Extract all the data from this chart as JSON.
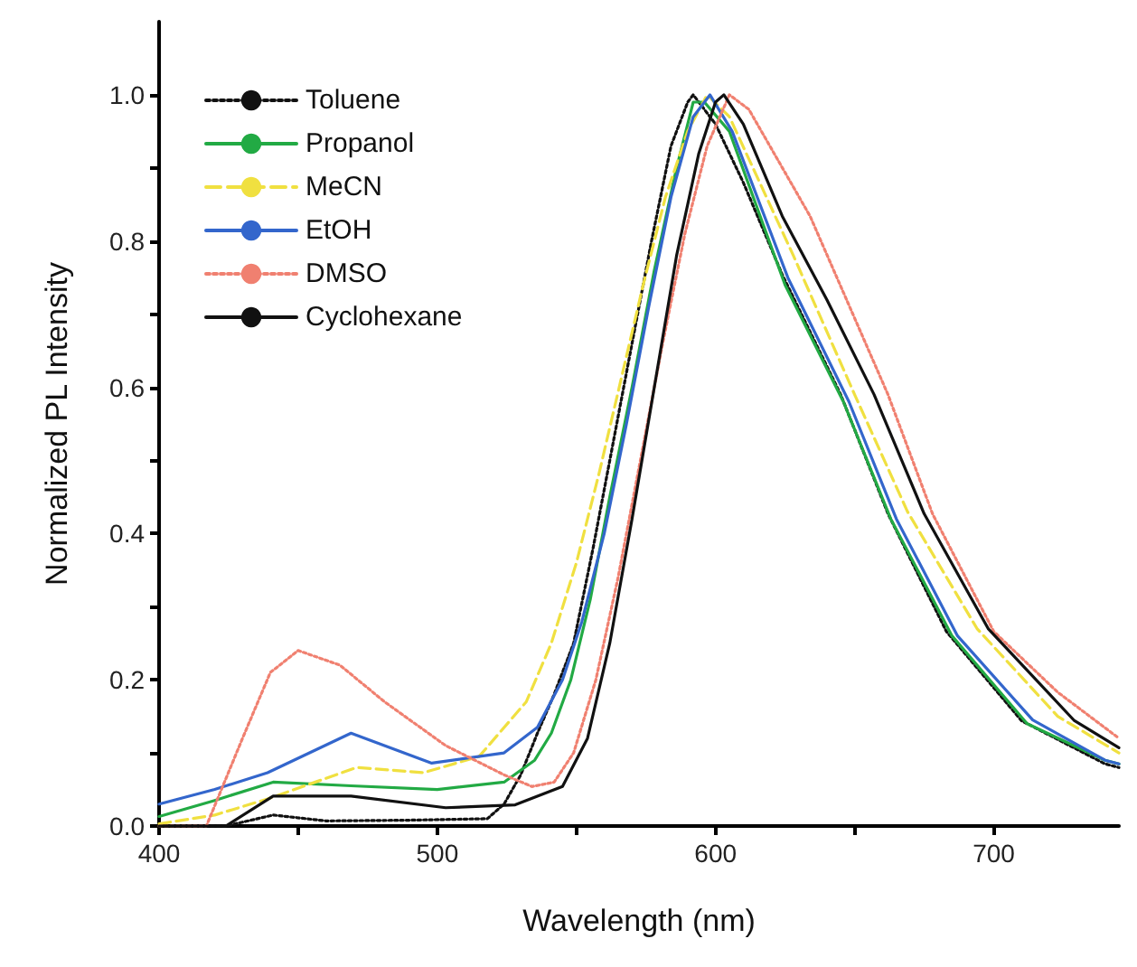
{
  "chart_data": {
    "type": "line",
    "xlabel": "Wavelength (nm)",
    "ylabel": "Normalized PL Intensity",
    "xlim": [
      400,
      745
    ],
    "ylim": [
      0,
      1.1
    ],
    "xticks": [
      400,
      {
        "value": 450,
        "label": null
      },
      500,
      {
        "value": 550,
        "label": null
      },
      600,
      {
        "value": 650,
        "label": null
      },
      700
    ],
    "yticks": [
      {
        "value": 0,
        "label": "0.0"
      },
      {
        "value": 0.1,
        "label": null
      },
      {
        "value": 0.2,
        "label": "0.2"
      },
      {
        "value": 0.3,
        "label": null
      },
      {
        "value": 0.4,
        "label": "0.4"
      },
      {
        "value": 0.5,
        "label": null
      },
      {
        "value": 0.6,
        "label": "0.6"
      },
      {
        "value": 0.7,
        "label": null
      },
      {
        "value": 0.8,
        "label": "0.8"
      },
      {
        "value": 0.9,
        "label": null
      },
      {
        "value": 1,
        "label": "1.0"
      }
    ],
    "grid": false,
    "legend": "top left",
    "marker": "none",
    "series": [
      {
        "name": "Toluene",
        "color": "#111111",
        "line_style": "dotted",
        "x": [
          400,
          424,
          441,
          460,
          490,
          518,
          524,
          530,
          536,
          542,
          549,
          556,
          563,
          570,
          577,
          584,
          590,
          592,
          600,
          610,
          624,
          645,
          662,
          683,
          710,
          740,
          745
        ],
        "values": [
          0,
          0,
          0.015,
          0.007,
          0.008,
          0.01,
          0.03,
          0.07,
          0.127,
          0.18,
          0.25,
          0.38,
          0.52,
          0.66,
          0.8,
          0.93,
          0.99,
          1.0,
          0.96,
          0.88,
          0.754,
          0.59,
          0.427,
          0.266,
          0.144,
          0.085,
          0.08
        ]
      },
      {
        "name": "Propanol",
        "color": "#22aa44",
        "line_style": "solid",
        "x": [
          400,
          420,
          441,
          469,
          500,
          524,
          535,
          541,
          548,
          555,
          562,
          570,
          578,
          586,
          592,
          596,
          605,
          625,
          646,
          663,
          685,
          712,
          740,
          745
        ],
        "values": [
          0.013,
          0.035,
          0.06,
          0.055,
          0.05,
          0.06,
          0.09,
          0.127,
          0.2,
          0.31,
          0.45,
          0.6,
          0.76,
          0.9,
          0.99,
          0.99,
          0.95,
          0.74,
          0.58,
          0.42,
          0.26,
          0.14,
          0.09,
          0.085
        ]
      },
      {
        "name": "MeCN",
        "color": "#f0e040",
        "line_style": "dashed",
        "x": [
          400,
          420,
          439,
          471,
          495,
          515,
          532,
          541,
          550,
          558,
          566,
          574,
          582,
          590,
          597,
          605,
          628,
          650,
          669,
          694,
          723,
          745
        ],
        "values": [
          0.003,
          0.015,
          0.037,
          0.08,
          0.073,
          0.095,
          0.17,
          0.25,
          0.36,
          0.48,
          0.61,
          0.74,
          0.86,
          0.95,
          1.0,
          0.97,
          0.78,
          0.59,
          0.43,
          0.27,
          0.15,
          0.1
        ]
      },
      {
        "name": "EtOH",
        "color": "#3366cc",
        "line_style": "solid",
        "x": [
          400,
          420,
          439,
          469,
          498,
          524,
          536,
          545,
          552,
          560,
          568,
          576,
          584,
          592,
          598,
          606,
          626,
          648,
          665,
          687,
          714,
          740,
          745
        ],
        "values": [
          0.03,
          0.05,
          0.073,
          0.127,
          0.086,
          0.1,
          0.135,
          0.2,
          0.28,
          0.4,
          0.55,
          0.71,
          0.86,
          0.97,
          1.0,
          0.95,
          0.75,
          0.58,
          0.42,
          0.26,
          0.145,
          0.09,
          0.085
        ]
      },
      {
        "name": "DMSO",
        "color": "#f08070",
        "line_style": "dotted",
        "x": [
          400,
          417,
          430,
          440,
          450,
          465,
          481,
          503,
          524,
          534,
          542,
          549,
          557,
          565,
          573,
          581,
          589,
          597,
          605,
          612,
          634,
          662,
          678,
          700,
          723,
          745
        ],
        "values": [
          0,
          0,
          0.12,
          0.21,
          0.24,
          0.22,
          0.17,
          0.11,
          0.07,
          0.054,
          0.06,
          0.1,
          0.2,
          0.34,
          0.5,
          0.66,
          0.81,
          0.93,
          1.0,
          0.98,
          0.834,
          0.59,
          0.427,
          0.266,
          0.183,
          0.12
        ]
      },
      {
        "name": "Cyclohexane",
        "color": "#111111",
        "line_style": "solid",
        "x": [
          400,
          424,
          441,
          469,
          503,
          528,
          545,
          554,
          562,
          570,
          578,
          586,
          594,
          600,
          603,
          610,
          624,
          640,
          657,
          675,
          698,
          729,
          745
        ],
        "values": [
          0,
          0,
          0.041,
          0.041,
          0.025,
          0.029,
          0.054,
          0.12,
          0.25,
          0.42,
          0.6,
          0.78,
          0.92,
          0.99,
          1.0,
          0.96,
          0.834,
          0.72,
          0.59,
          0.427,
          0.27,
          0.144,
          0.107
        ]
      }
    ]
  }
}
